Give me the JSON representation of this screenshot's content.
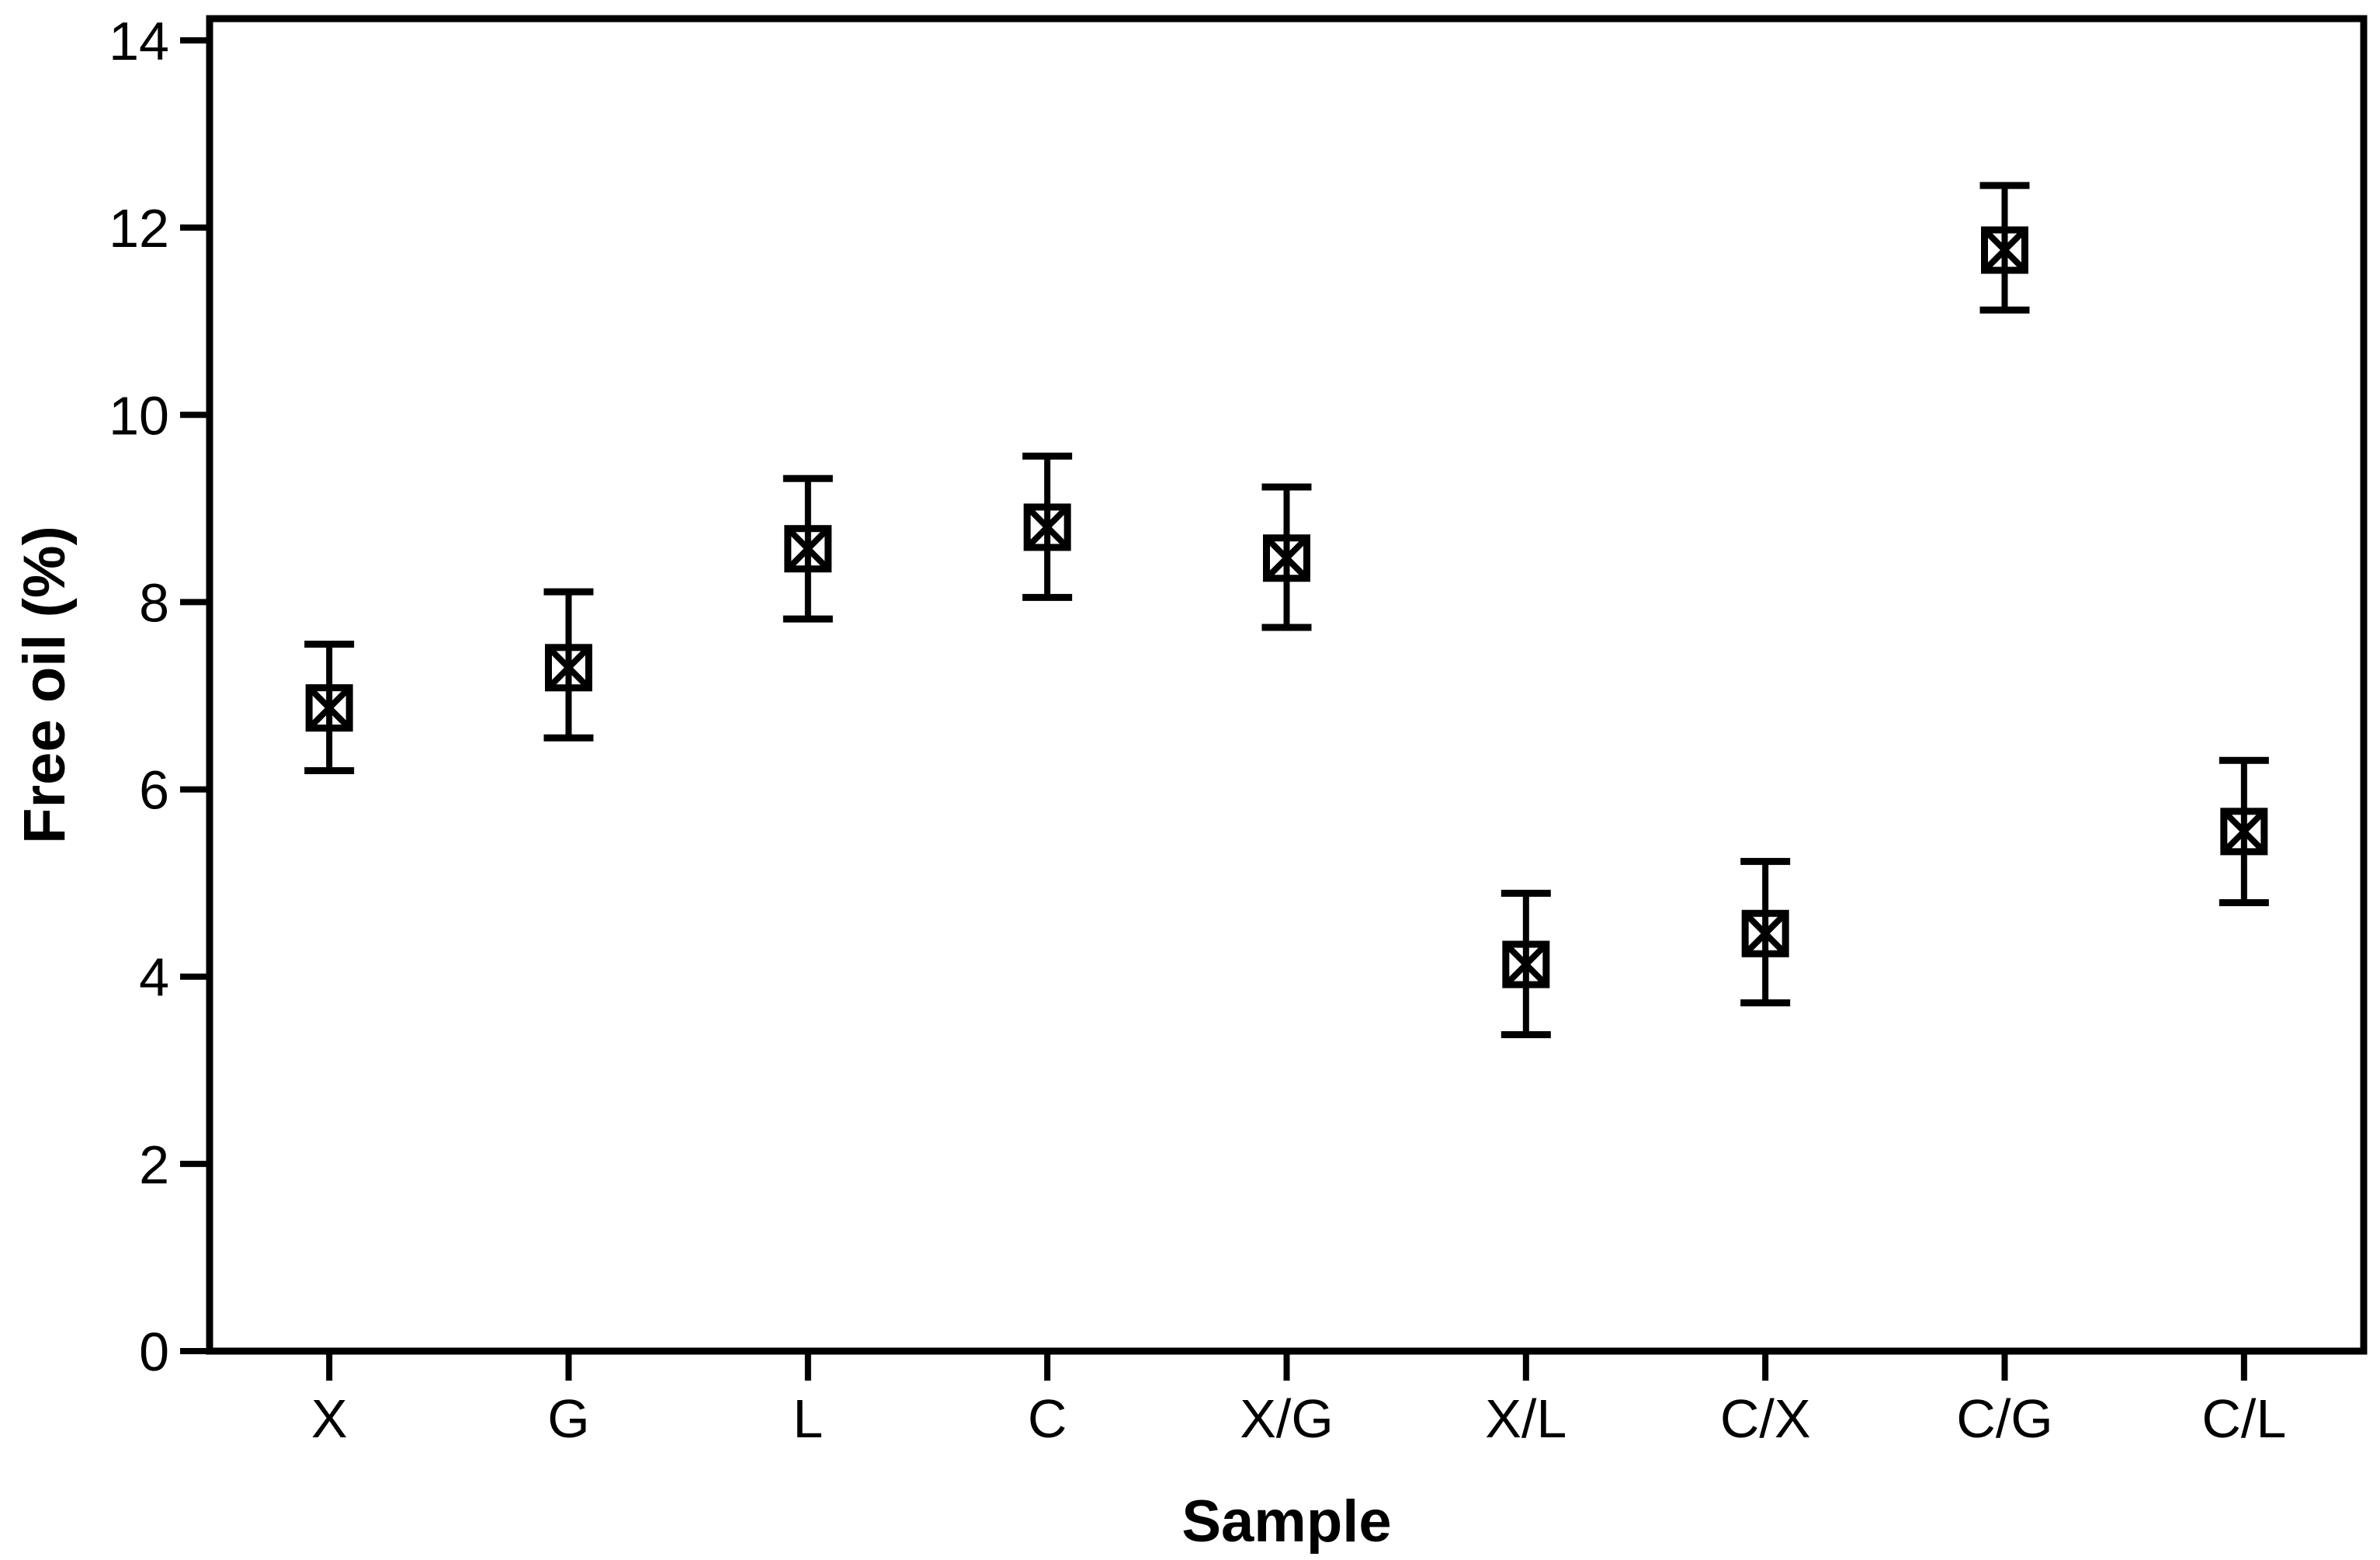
{
  "figure": {
    "background": "#ffffff",
    "ink_color": "#000000"
  },
  "chart_data": {
    "type": "scatter",
    "subtype": "mean-with-error-bars",
    "marker": "boxed-x-square",
    "title": "",
    "xlabel": "Sample",
    "ylabel": "Free oil (%)",
    "categories": [
      "X",
      "G",
      "L",
      "C",
      "X/G",
      "X/L",
      "C/X",
      "C/G",
      "C/L"
    ],
    "series": [
      {
        "name": "Free oil",
        "points": [
          {
            "category": "X",
            "mean": 6.87,
            "lower": 6.2,
            "upper": 7.55
          },
          {
            "category": "G",
            "mean": 7.3,
            "lower": 6.55,
            "upper": 8.11
          },
          {
            "category": "L",
            "mean": 8.57,
            "lower": 7.82,
            "upper": 9.32
          },
          {
            "category": "C",
            "mean": 8.8,
            "lower": 8.05,
            "upper": 9.56
          },
          {
            "category": "X/G",
            "mean": 8.47,
            "lower": 7.73,
            "upper": 9.23
          },
          {
            "category": "X/L",
            "mean": 4.13,
            "lower": 3.38,
            "upper": 4.89
          },
          {
            "category": "C/X",
            "mean": 4.46,
            "lower": 3.72,
            "upper": 5.23
          },
          {
            "category": "C/G",
            "mean": 11.76,
            "lower": 11.12,
            "upper": 12.45
          },
          {
            "category": "C/L",
            "mean": 5.55,
            "lower": 4.79,
            "upper": 6.31
          }
        ]
      }
    ],
    "ylim": [
      0,
      14
    ],
    "yticks": [
      0,
      2,
      4,
      6,
      8,
      10,
      12,
      14
    ],
    "xlim_categories": 9,
    "grid": false,
    "legend": "none",
    "frame": "full-box"
  }
}
